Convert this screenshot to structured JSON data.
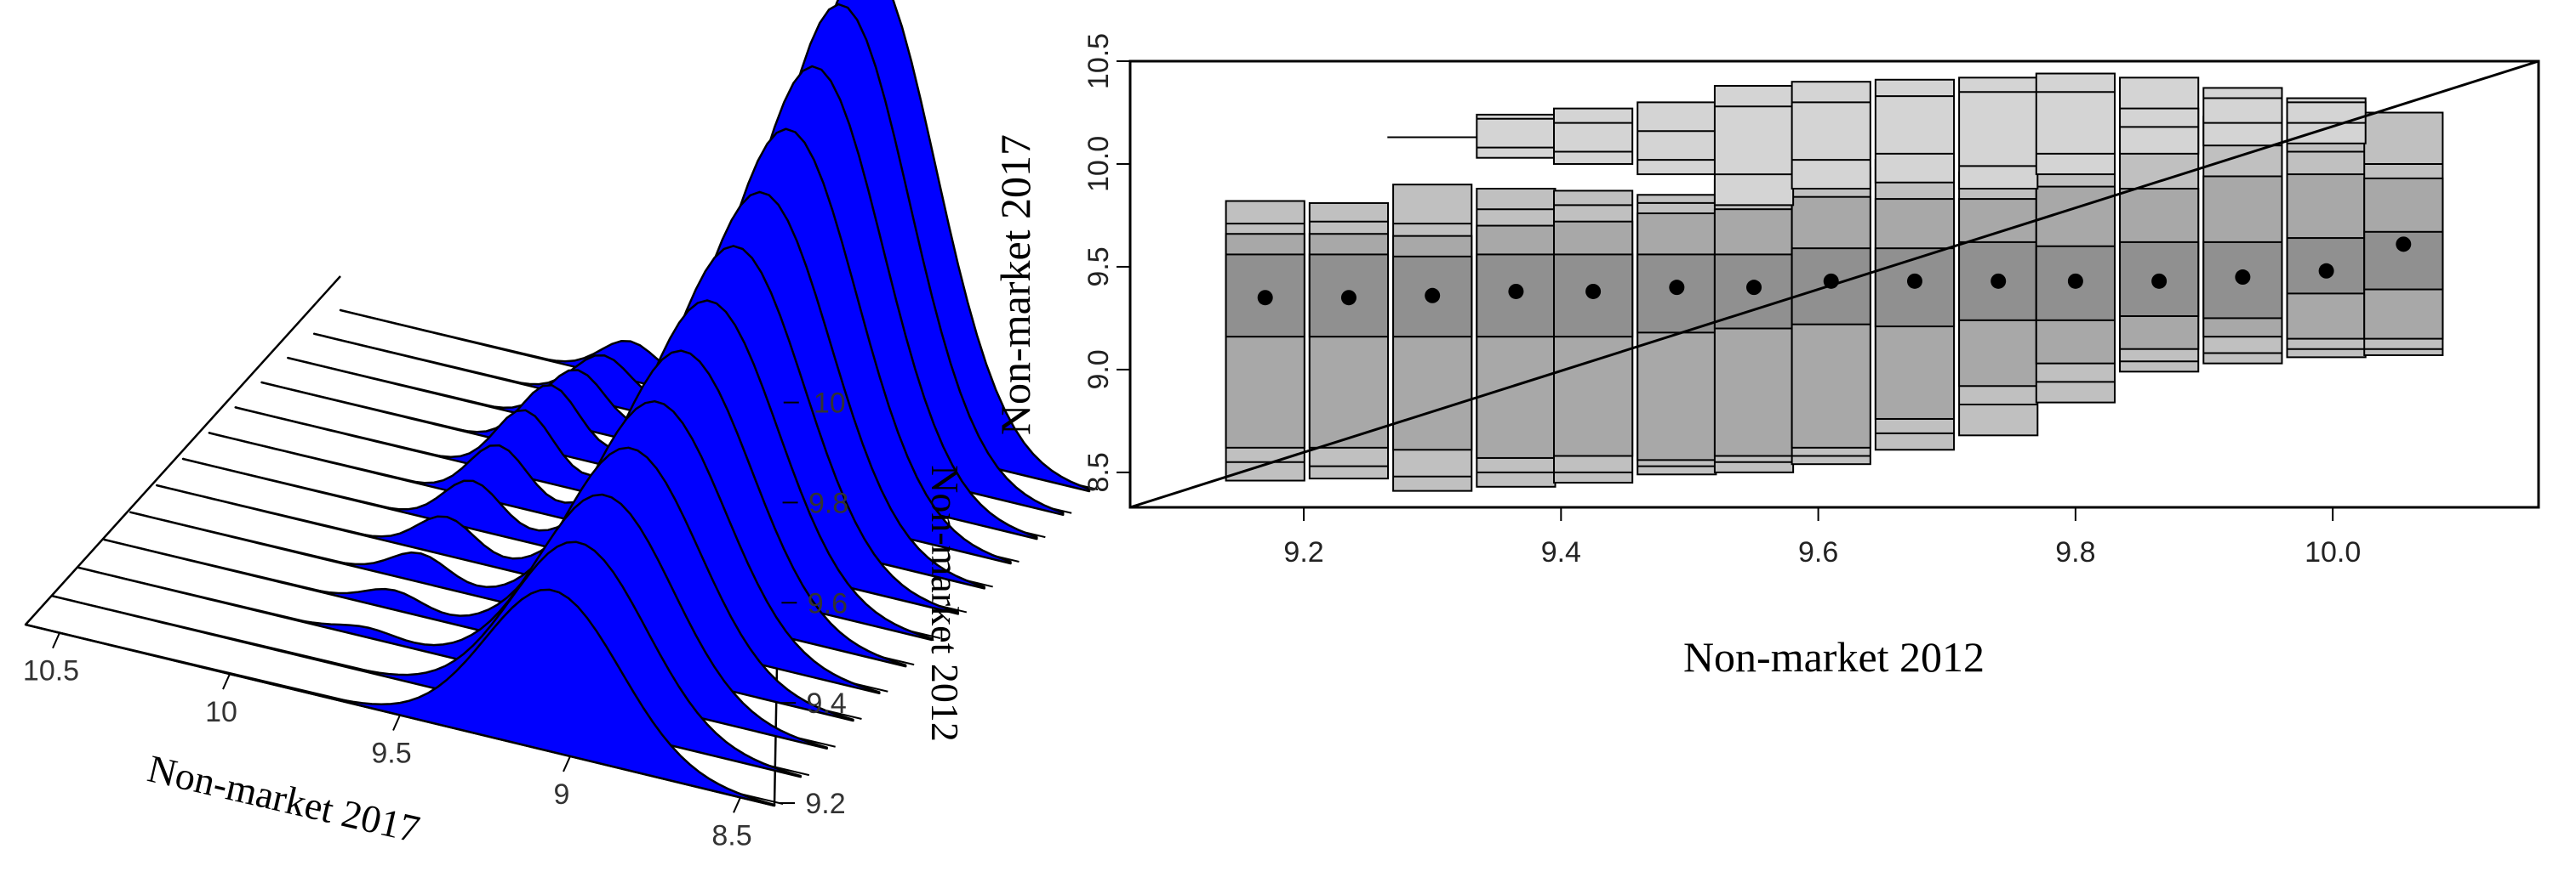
{
  "chart_data": [
    {
      "type": "area",
      "subtype": "3d-stacked-density",
      "xlabel": "Non-market 2017",
      "ylabel": "Non-market 2012",
      "x_ticks": [
        "10.5",
        "10",
        "9.5",
        "9",
        "8.5"
      ],
      "y_ticks": [
        "9.2",
        "9.4",
        "9.6",
        "9.8",
        "10"
      ],
      "fill_color": "#0000ff",
      "slices": [
        {
          "y": 9.2,
          "peak": 0.34,
          "second_peak": 0.0
        },
        {
          "y": 9.27,
          "peak": 0.38,
          "second_peak": 0.0
        },
        {
          "y": 9.34,
          "peak": 0.42,
          "second_peak": 0.02
        },
        {
          "y": 9.41,
          "peak": 0.46,
          "second_peak": 0.04
        },
        {
          "y": 9.48,
          "peak": 0.5,
          "second_peak": 0.06
        },
        {
          "y": 9.55,
          "peak": 0.55,
          "second_peak": 0.08
        },
        {
          "y": 9.62,
          "peak": 0.6,
          "second_peak": 0.1
        },
        {
          "y": 9.69,
          "peak": 0.66,
          "second_peak": 0.12
        },
        {
          "y": 9.76,
          "peak": 0.72,
          "second_peak": 0.14
        },
        {
          "y": 9.83,
          "peak": 0.8,
          "second_peak": 0.14
        },
        {
          "y": 9.9,
          "peak": 0.88,
          "second_peak": 0.12
        },
        {
          "y": 9.97,
          "peak": 0.96,
          "second_peak": 0.1
        },
        {
          "y": 10.04,
          "peak": 1.0,
          "second_peak": 0.08
        }
      ]
    },
    {
      "type": "boxplot",
      "subtype": "stacked-quantile-boxes",
      "xlabel": "Non-market 2012",
      "ylabel": "Non-market 2017",
      "x_ticks": [
        "9.2",
        "9.4",
        "9.6",
        "9.8",
        "10.0"
      ],
      "y_ticks": [
        "8.5",
        "9.0",
        "9.5",
        "10.0",
        "10.5"
      ],
      "xlim": [
        9.065,
        10.16
      ],
      "ylim": [
        8.33,
        10.5
      ],
      "diagonal_line": {
        "from": [
          9.065,
          8.33
        ],
        "to": [
          10.16,
          10.5
        ]
      },
      "box_fill": "#c0c0c0",
      "inner_fill": "#a8a8a8",
      "center_fill": "#909090",
      "columns": [
        {
          "x": 9.17,
          "lo": 8.46,
          "q05": 8.55,
          "q10": 8.62,
          "q25": 9.16,
          "q50": 9.35,
          "q75": 9.56,
          "q90": 9.66,
          "q95": 9.71,
          "hi": 9.82
        },
        {
          "x": 9.235,
          "lo": 8.47,
          "q05": 8.53,
          "q10": 8.62,
          "q25": 9.16,
          "q50": 9.35,
          "q75": 9.56,
          "q90": 9.66,
          "q95": 9.72,
          "hi": 9.81
        },
        {
          "x": 9.3,
          "lo": 8.41,
          "q05": 8.48,
          "q10": 8.61,
          "q25": 9.16,
          "q50": 9.36,
          "q75": 9.55,
          "q90": 9.65,
          "q95": 9.71,
          "hi": 9.9
        },
        {
          "x": 9.365,
          "lo": 8.43,
          "q05": 8.5,
          "q10": 8.57,
          "q25": 9.16,
          "q50": 9.38,
          "q75": 9.56,
          "q90": 9.7,
          "q95": 9.78,
          "hi": 9.88
        },
        {
          "x": 9.425,
          "lo": 8.45,
          "q05": 8.5,
          "q10": 8.58,
          "q25": 9.16,
          "q50": 9.38,
          "q75": 9.56,
          "q90": 9.72,
          "q95": 9.8,
          "hi": 9.87
        },
        {
          "x": 9.49,
          "lo": 8.49,
          "q05": 8.53,
          "q10": 8.56,
          "q25": 9.18,
          "q50": 9.4,
          "q75": 9.56,
          "q90": 9.76,
          "q95": 9.81,
          "hi": 9.85
        },
        {
          "x": 9.55,
          "lo": 8.5,
          "q05": 8.55,
          "q10": 8.58,
          "q25": 9.2,
          "q50": 9.4,
          "q75": 9.56,
          "q90": 9.78,
          "q95": 9.88,
          "hi": 9.92
        },
        {
          "x": 9.61,
          "lo": 8.54,
          "q05": 8.58,
          "q10": 8.62,
          "q25": 9.22,
          "q50": 9.43,
          "q75": 9.59,
          "q90": 9.84,
          "q95": 9.93,
          "hi": 9.98
        },
        {
          "x": 9.675,
          "lo": 8.61,
          "q05": 8.69,
          "q10": 8.76,
          "q25": 9.21,
          "q50": 9.43,
          "q75": 9.59,
          "q90": 9.83,
          "q95": 9.95,
          "hi": 10.02
        },
        {
          "x": 9.74,
          "lo": 8.68,
          "q05": 8.83,
          "q10": 8.92,
          "q25": 9.24,
          "q50": 9.43,
          "q75": 9.62,
          "q90": 9.83,
          "q95": 9.88,
          "hi": 9.96
        },
        {
          "x": 9.8,
          "lo": 8.84,
          "q05": 8.94,
          "q10": 9.03,
          "q25": 9.24,
          "q50": 9.43,
          "q75": 9.6,
          "q90": 9.89,
          "q95": 9.96,
          "hi": 10.02
        },
        {
          "x": 9.865,
          "lo": 8.99,
          "q05": 9.04,
          "q10": 9.1,
          "q25": 9.26,
          "q50": 9.43,
          "q75": 9.62,
          "q90": 9.88,
          "q95": 10.18,
          "hi": 10.27
        },
        {
          "x": 9.93,
          "lo": 9.03,
          "q05": 9.08,
          "q10": 9.16,
          "q25": 9.25,
          "q50": 9.45,
          "q75": 9.62,
          "q90": 9.94,
          "q95": 10.17,
          "hi": 10.23
        },
        {
          "x": 9.995,
          "lo": 9.06,
          "q05": 9.1,
          "q10": 9.15,
          "q25": 9.37,
          "q50": 9.48,
          "q75": 9.64,
          "q90": 9.95,
          "q95": 10.06,
          "hi": 10.3
        },
        {
          "x": 10.055,
          "lo": 9.07,
          "q05": 9.1,
          "q10": 9.15,
          "q25": 9.39,
          "q50": 9.61,
          "q75": 9.67,
          "q90": 9.93,
          "q95": 10.0,
          "hi": 10.25
        }
      ],
      "upper_boxes": [
        {
          "x": 9.365,
          "lo": 10.03,
          "q25": 10.08,
          "q75": 10.22,
          "hi": 10.24
        },
        {
          "x": 9.425,
          "lo": 10.0,
          "q25": 10.06,
          "q75": 10.2,
          "hi": 10.27
        },
        {
          "x": 9.49,
          "lo": 9.95,
          "q25": 10.02,
          "q75": 10.16,
          "hi": 10.3
        },
        {
          "x": 9.55,
          "lo": 9.8,
          "q25": 9.95,
          "q75": 10.28,
          "hi": 10.38
        },
        {
          "x": 9.61,
          "lo": 9.88,
          "q25": 10.02,
          "q75": 10.3,
          "hi": 10.4
        },
        {
          "x": 9.675,
          "lo": 9.91,
          "q25": 10.05,
          "q75": 10.33,
          "hi": 10.41
        },
        {
          "x": 9.74,
          "lo": 9.88,
          "q25": 9.99,
          "q75": 10.35,
          "hi": 10.42
        },
        {
          "x": 9.8,
          "lo": 9.95,
          "q25": 10.05,
          "q75": 10.35,
          "hi": 10.44
        },
        {
          "x": 9.865,
          "lo": 10.05,
          "q25": 10.18,
          "q75": 10.27,
          "hi": 10.42
        },
        {
          "x": 9.93,
          "lo": 10.09,
          "q25": 10.2,
          "q75": 10.32,
          "hi": 10.37
        },
        {
          "x": 9.995,
          "lo": 10.1,
          "q25": 10.2,
          "q75": 10.3,
          "hi": 10.32
        }
      ],
      "whisker": {
        "x1": 9.265,
        "x2": 9.335,
        "y": 10.13
      },
      "medians": [
        9.35,
        9.35,
        9.36,
        9.38,
        9.38,
        9.4,
        9.4,
        9.43,
        9.43,
        9.43,
        9.43,
        9.43,
        9.45,
        9.48,
        9.61
      ]
    }
  ]
}
